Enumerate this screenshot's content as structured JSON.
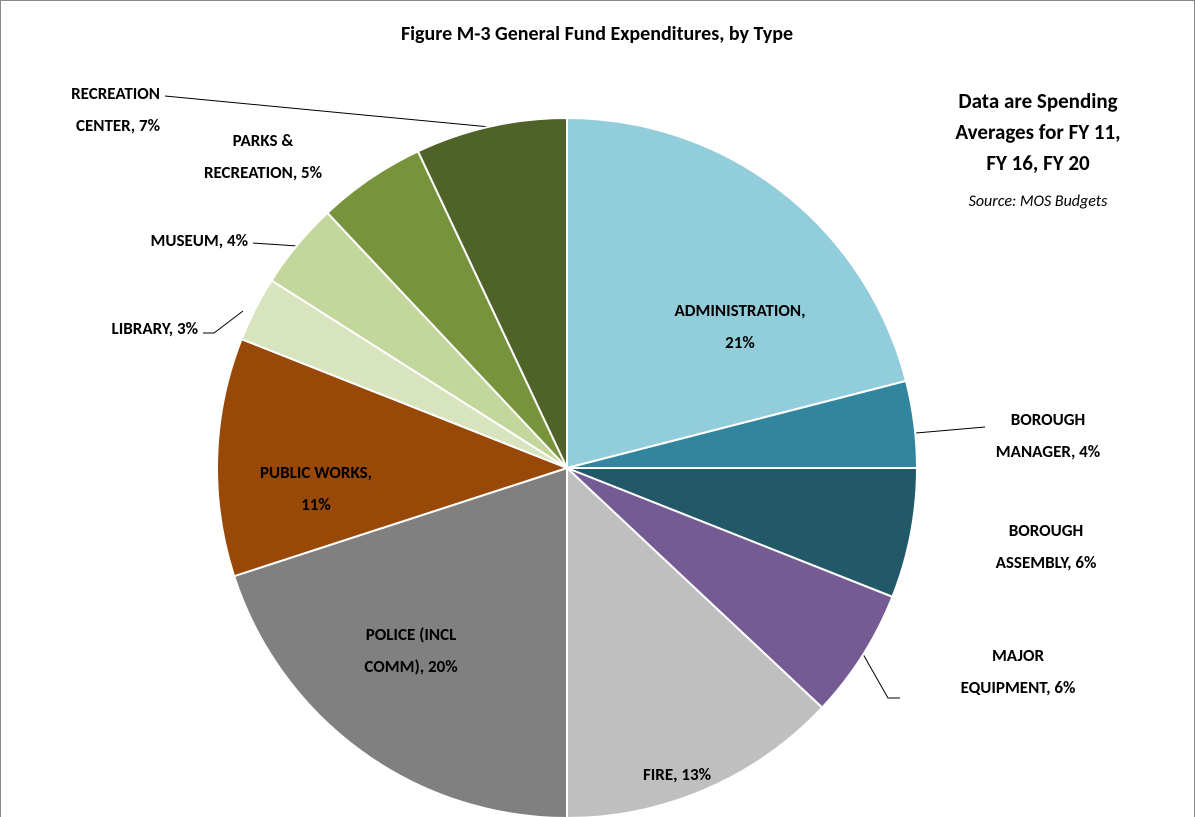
{
  "chart_data": {
    "type": "pie",
    "title": "Figure M-3  General Fund Expenditures, by Type",
    "annotation": [
      "Data are Spending",
      "Averages for FY 11,",
      "FY 16, FY 20"
    ],
    "source": "Source: MOS Budgets",
    "categories": [
      [
        "ADMINISTRATION,",
        "21%"
      ],
      [
        "BOROUGH",
        "MANAGER, 4%"
      ],
      [
        "BOROUGH",
        "ASSEMBLY, 6%"
      ],
      [
        "MAJOR",
        "EQUIPMENT, 6%"
      ],
      [
        "FIRE, 13%"
      ],
      [
        "POLICE (INCL",
        "COMM), 20%"
      ],
      [
        "PUBLIC WORKS,",
        "11%"
      ],
      [
        "LIBRARY, 3%"
      ],
      [
        "MUSEUM, 4%"
      ],
      [
        "PARKS &",
        "RECREATION, 5%"
      ],
      [
        "RECREATION",
        "CENTER, 7%"
      ]
    ],
    "values": [
      21,
      4,
      6,
      6,
      13,
      20,
      11,
      3,
      4,
      5,
      7
    ],
    "colors": [
      "#92cddc",
      "#31859c",
      "#215968",
      "#755b94",
      "#bfbfbf",
      "#808080",
      "#984807",
      "#d7e4bd",
      "#c3d69b",
      "#77933c",
      "#4f6228"
    ]
  }
}
